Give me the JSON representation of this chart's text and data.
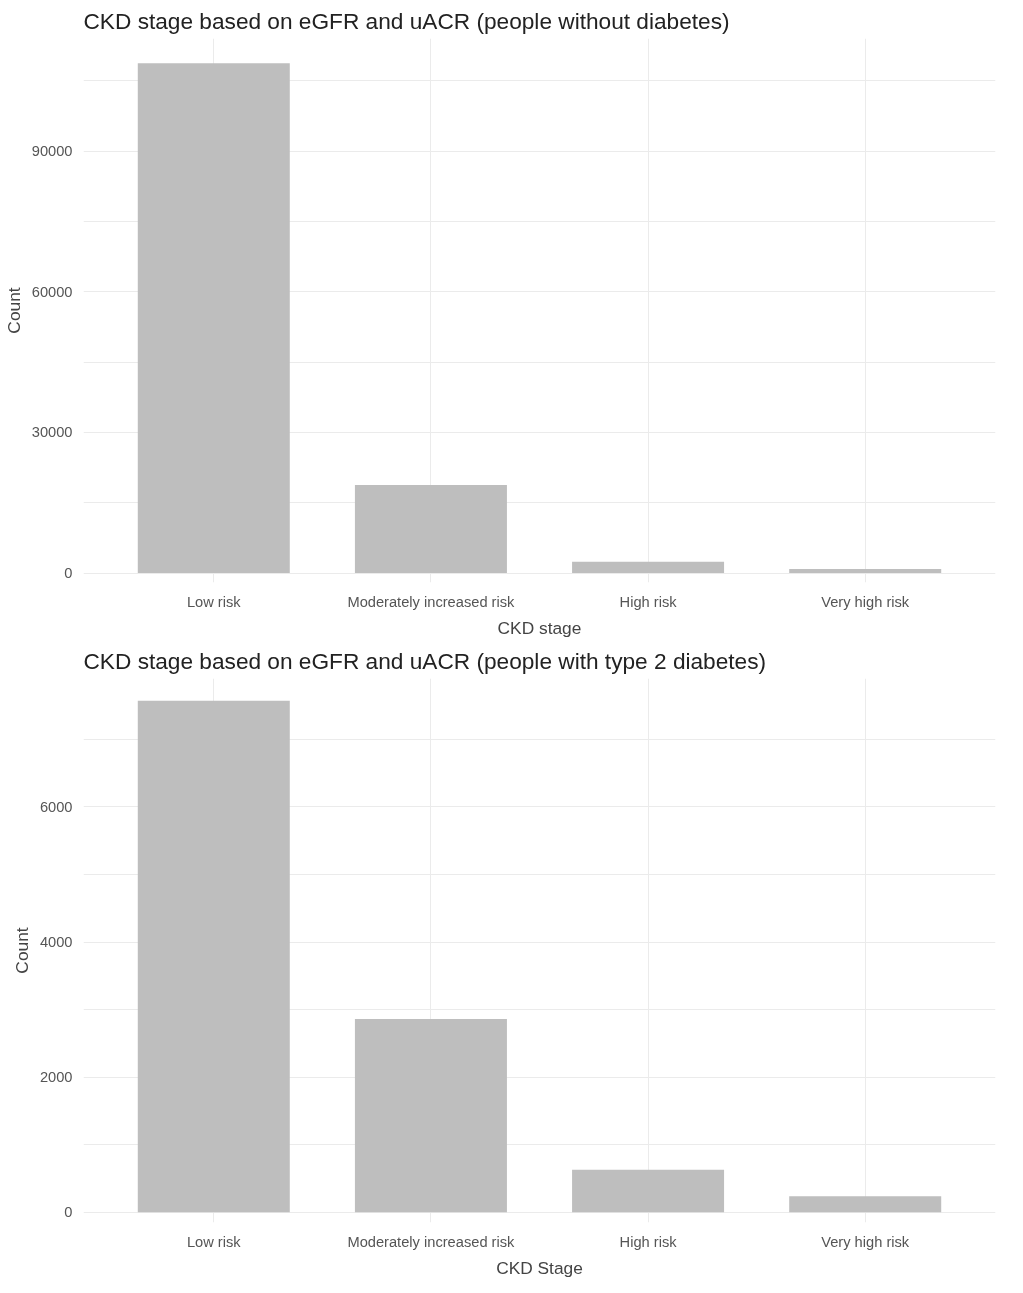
{
  "chart_data": [
    {
      "type": "bar",
      "title": "CKD stage based on eGFR and uACR (people without diabetes)",
      "xlabel": "CKD stage",
      "ylabel": "Count",
      "categories": [
        "Low risk",
        "Moderately increased risk",
        "High risk",
        "Very high risk"
      ],
      "values": [
        108700,
        18800,
        2400,
        900
      ],
      "color": "#bebebe",
      "ylim": [
        -2000,
        114000
      ],
      "yticks": [
        0,
        {
          "value": 15000,
          "label": null
        },
        30000,
        {
          "value": 45000,
          "label": null
        },
        60000,
        {
          "value": 75000,
          "label": null
        },
        90000,
        {
          "value": 105000,
          "label": null
        }
      ],
      "grid": true
    },
    {
      "type": "bar",
      "title": "CKD stage based on eGFR and uACR (people with type 2 diabetes)",
      "xlabel": "CKD Stage",
      "ylabel": "Count",
      "categories": [
        "Low risk",
        "Moderately increased risk",
        "High risk",
        "Very high risk"
      ],
      "values": [
        7570,
        2860,
        630,
        240
      ],
      "color": "#bebebe",
      "ylim": [
        -150,
        7900
      ],
      "yticks": [
        0,
        {
          "value": 1000,
          "label": null
        },
        2000,
        {
          "value": 3000,
          "label": null
        },
        4000,
        {
          "value": 5000,
          "label": null
        },
        6000,
        {
          "value": 7000,
          "label": null
        }
      ],
      "grid": true
    }
  ]
}
